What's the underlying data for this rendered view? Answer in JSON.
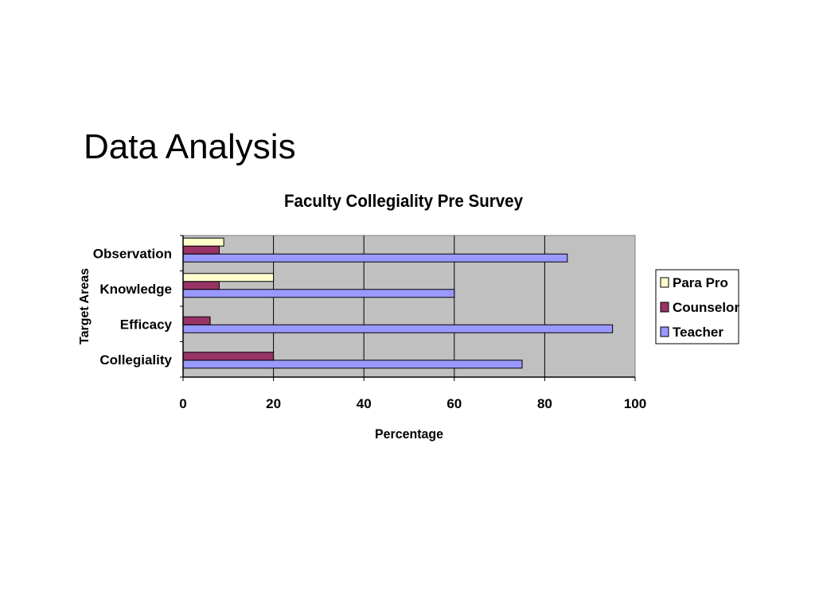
{
  "slide": {
    "title": "Data Analysis"
  },
  "chart_data": {
    "type": "bar",
    "orientation": "horizontal",
    "title": "Faculty Collegiality Pre Survey",
    "xlabel": "Percentage",
    "ylabel": "Target Areas",
    "categories": [
      "Collegiality",
      "Efficacy",
      "Knowledge",
      "Observation"
    ],
    "series": [
      {
        "name": "Teacher",
        "values": [
          75,
          95,
          60,
          85
        ],
        "color": "#9999FF"
      },
      {
        "name": "Counselor",
        "values": [
          20,
          6,
          8,
          8
        ],
        "color": "#993366"
      },
      {
        "name": "Para Pro",
        "values": [
          0,
          0,
          20,
          9
        ],
        "color": "#FFFFCC"
      }
    ],
    "xlim": [
      0,
      100
    ],
    "x_ticks": [
      0,
      20,
      40,
      60,
      80,
      100
    ],
    "plot_background": "#C0C0C0",
    "grid": "vertical",
    "legend_position": "right",
    "legend_order": [
      "Para Pro",
      "Counselor",
      "Teacher"
    ]
  }
}
